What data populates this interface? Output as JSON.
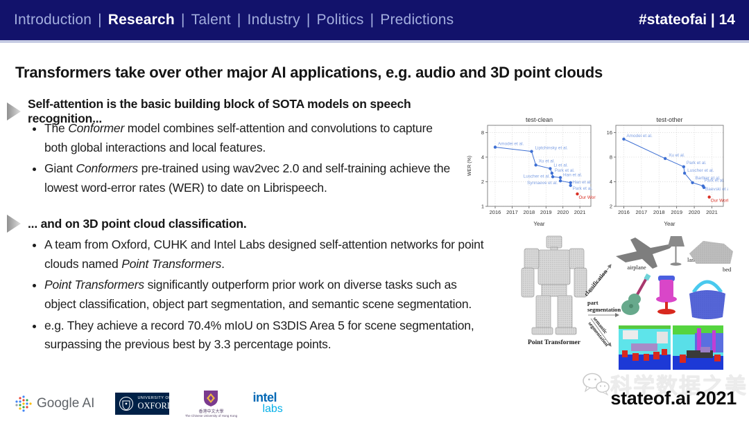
{
  "nav": {
    "items": [
      {
        "label": "Introduction",
        "active": false
      },
      {
        "label": "Research",
        "active": true
      },
      {
        "label": "Talent",
        "active": false
      },
      {
        "label": "Industry",
        "active": false
      },
      {
        "label": "Politics",
        "active": false
      },
      {
        "label": "Predictions",
        "active": false
      }
    ],
    "separator": "|",
    "hashtag": "#stateofai | 14"
  },
  "title": "Transformers take over other major AI applications, e.g. audio and 3D point clouds",
  "sections": [
    {
      "header": "Self-attention is the basic building block of SOTA models on speech recognition...",
      "bullets": [
        [
          {
            "t": "The "
          },
          {
            "t": "Conformer",
            "i": true
          },
          {
            "t": " model combines self-attention and convolutions to capture both global interactions and local features."
          }
        ],
        [
          {
            "t": "Giant "
          },
          {
            "t": "Conformers",
            "i": true
          },
          {
            "t": " pre-trained using wav2vec 2.0 and self-training achieve the lowest word-error rates (WER) to date on Librispeech."
          }
        ]
      ]
    },
    {
      "header": "... and on 3D point cloud classification.",
      "bullets": [
        [
          {
            "t": "A team from Oxford, CUHK and Intel Labs designed self-attention networks for point clouds named "
          },
          {
            "t": "Point Transformers",
            "i": true
          },
          {
            "t": "."
          }
        ],
        [
          {
            "t": "Point Transformers",
            "i": true
          },
          {
            "t": " significantly outperform prior work on diverse tasks such as object classification, object part segmentation, and semantic scene segmentation."
          }
        ],
        [
          {
            "t": "e.g. They achieve a record 70.4% mIoU on S3DIS Area 5 for scene segmentation, surpassing the previous best by 3.3 percentage points."
          }
        ]
      ]
    }
  ],
  "chart_data": [
    {
      "type": "scatter",
      "title": "test-clean",
      "xlabel": "Year",
      "ylabel": "WER (%)",
      "x_ticks": [
        2016,
        2017,
        2018,
        2019,
        2020,
        2021
      ],
      "y_ticks": [
        1,
        2,
        4,
        8
      ],
      "y_scale": "log",
      "xlim": [
        2015.55,
        2021.65
      ],
      "ylim": [
        1,
        9.8
      ],
      "grid": "dotted",
      "series": [
        {
          "name": "prior work",
          "color": "#3d6fd3",
          "label_color": "#7d9fe3",
          "connected": true,
          "points": [
            {
              "x": 2016.0,
              "y": 5.3,
              "label": "Amodei et al.",
              "dx": 4,
              "dy": -3,
              "anchor": "start"
            },
            {
              "x": 2018.15,
              "y": 4.7,
              "label": "Liptchinsky et al.",
              "dx": 5,
              "dy": -3,
              "anchor": "start"
            },
            {
              "x": 2018.4,
              "y": 3.2,
              "label": "Xu et al.",
              "dx": 4,
              "dy": -4,
              "anchor": "start"
            },
            {
              "x": 2019.25,
              "y": 2.9,
              "label": "Li et al.",
              "dx": 5,
              "dy": -3,
              "anchor": "start"
            },
            {
              "x": 2019.35,
              "y": 2.55,
              "label": "Park et al.",
              "dx": 4,
              "dy": -2,
              "anchor": "start"
            },
            {
              "x": 2019.4,
              "y": 2.3,
              "label": "Luscher et al.",
              "dx": -4,
              "dy": 1,
              "anchor": "end"
            },
            {
              "x": 2019.85,
              "y": 2.25,
              "label": "Han et al.",
              "dx": 4,
              "dy": -2,
              "anchor": "start"
            },
            {
              "x": 2019.85,
              "y": 2.05,
              "label": "Synnaeve et al.",
              "dx": -4,
              "dy": 5,
              "anchor": "end"
            },
            {
              "x": 2020.45,
              "y": 1.95,
              "label": "Han et al.",
              "dx": 3,
              "dy": 1,
              "anchor": "start"
            },
            {
              "x": 2020.45,
              "y": 1.8,
              "label": "Park et al.",
              "dx": 3,
              "dy": 6,
              "anchor": "start"
            }
          ]
        },
        {
          "name": "Our Work",
          "color": "#d93025",
          "label_color": "#d93025",
          "connected": false,
          "points": [
            {
              "x": 2020.85,
              "y": 1.42,
              "label": "Our Work",
              "dx": 2,
              "dy": 7,
              "anchor": "start"
            }
          ]
        }
      ]
    },
    {
      "type": "scatter",
      "title": "test-other",
      "xlabel": "Year",
      "ylabel": "",
      "x_ticks": [
        2016,
        2017,
        2018,
        2019,
        2020,
        2021
      ],
      "y_ticks": [
        2,
        4,
        8,
        16
      ],
      "y_scale": "log",
      "xlim": [
        2015.55,
        2021.65
      ],
      "ylim": [
        2,
        19.6
      ],
      "grid": "dotted",
      "series": [
        {
          "name": "prior work",
          "color": "#3d6fd3",
          "label_color": "#7d9fe3",
          "connected": true,
          "points": [
            {
              "x": 2016.0,
              "y": 13.3,
              "label": "Amodei et al.",
              "dx": 4,
              "dy": -3,
              "anchor": "start"
            },
            {
              "x": 2018.35,
              "y": 7.7,
              "label": "Xu et al.",
              "dx": 5,
              "dy": -3,
              "anchor": "start"
            },
            {
              "x": 2019.4,
              "y": 6.1,
              "label": "Park et al.",
              "dx": 4,
              "dy": -4,
              "anchor": "start"
            },
            {
              "x": 2019.45,
              "y": 5.1,
              "label": "Luscher et al.",
              "dx": 4,
              "dy": -2,
              "anchor": "start"
            },
            {
              "x": 2019.9,
              "y": 3.9,
              "label": "Barbier et al.",
              "dx": 4,
              "dy": -5,
              "anchor": "start"
            },
            {
              "x": 2020.5,
              "y": 3.55,
              "label": "Park et al.",
              "dx": 2,
              "dy": -6,
              "anchor": "start"
            },
            {
              "x": 2020.55,
              "y": 3.4,
              "label": "Baevski et al",
              "dx": 2,
              "dy": 4,
              "anchor": "start"
            }
          ]
        },
        {
          "name": "Our Work",
          "color": "#d93025",
          "label_color": "#d93025",
          "connected": false,
          "points": [
            {
              "x": 2020.85,
              "y": 2.6,
              "label": "Our Work",
              "dx": 2,
              "dy": 7,
              "anchor": "start"
            }
          ]
        }
      ]
    }
  ],
  "figure": {
    "caption": "Point Transformer",
    "classification_label": "classification",
    "part_label_lines": [
      "part",
      "segmentation"
    ],
    "semantic_label_lines": [
      "semantic",
      "segmentation"
    ],
    "item_airplane": "airplane",
    "item_lamp": "lamp",
    "item_bed": "bed"
  },
  "footer": {
    "logos": {
      "google_ai": "Google AI",
      "oxford_top": "UNIVERSITY OF",
      "oxford_bottom": "OXFORD",
      "cuhk_cn": "香港中文大學",
      "cuhk_en": "The Chinese University of Hong Kong",
      "intel_top": "intel",
      "intel_bottom": "labs"
    },
    "watermark": "科学数据之美",
    "brand": "stateof.ai 2021"
  },
  "colors": {
    "topbar": "#12126b",
    "nav_inactive": "#a3aede",
    "nav_active": "#ffffff",
    "chart_blue": "#3d6fd3",
    "chart_red": "#d93025"
  }
}
